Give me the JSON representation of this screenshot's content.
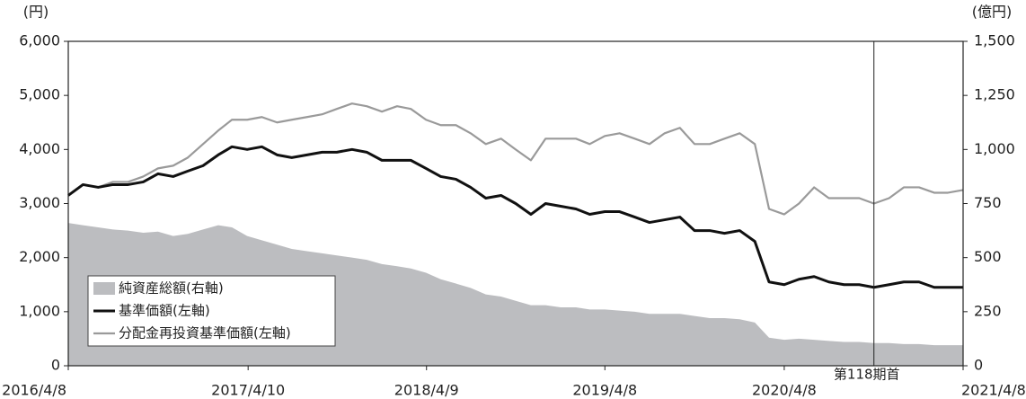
{
  "chart_data": {
    "type": "line",
    "y_label": "(円)",
    "y2_label": "(億円)",
    "x": [
      "2016/4/8",
      "2016/5/8",
      "2016/6/8",
      "2016/7/8",
      "2016/8/8",
      "2016/9/8",
      "2016/10/8",
      "2016/11/8",
      "2016/12/8",
      "2017/1/8",
      "2017/2/8",
      "2017/3/8",
      "2017/4/8",
      "2017/5/8",
      "2017/6/8",
      "2017/7/8",
      "2017/8/8",
      "2017/9/8",
      "2017/10/8",
      "2017/11/8",
      "2017/12/8",
      "2018/1/8",
      "2018/2/8",
      "2018/3/8",
      "2018/4/8",
      "2018/5/8",
      "2018/6/8",
      "2018/7/8",
      "2018/8/8",
      "2018/9/8",
      "2018/10/8",
      "2018/11/8",
      "2018/12/8",
      "2019/1/8",
      "2019/2/8",
      "2019/3/8",
      "2019/4/8",
      "2019/5/8",
      "2019/6/8",
      "2019/7/8",
      "2019/8/8",
      "2019/9/8",
      "2019/10/8",
      "2019/11/8",
      "2019/12/8",
      "2020/1/8",
      "2020/2/8",
      "2020/3/8",
      "2020/4/8",
      "2020/5/8",
      "2020/6/8",
      "2020/7/8",
      "2020/8/8",
      "2020/9/8",
      "2020/10/8",
      "2020/11/8",
      "2020/12/8",
      "2021/1/8",
      "2021/2/8",
      "2021/3/8",
      "2021/4/8"
    ],
    "series": [
      {
        "name": "純資産総額(右軸)",
        "type": "area",
        "axis": "y2",
        "color": "#bcbdc0",
        "values": [
          660,
          650,
          640,
          630,
          625,
          615,
          620,
          600,
          610,
          630,
          650,
          640,
          600,
          580,
          560,
          540,
          530,
          520,
          510,
          500,
          490,
          470,
          460,
          450,
          430,
          400,
          380,
          360,
          330,
          320,
          300,
          280,
          280,
          270,
          270,
          260,
          260,
          255,
          250,
          240,
          240,
          240,
          230,
          220,
          220,
          215,
          200,
          130,
          120,
          125,
          120,
          115,
          110,
          110,
          105,
          105,
          100,
          100,
          95,
          95,
          95
        ]
      },
      {
        "name": "基準価額(左軸)",
        "type": "line",
        "color": "#111111",
        "values": [
          3150,
          3350,
          3300,
          3350,
          3350,
          3400,
          3550,
          3500,
          3600,
          3700,
          3900,
          4050,
          4000,
          4050,
          3900,
          3850,
          3900,
          3950,
          3950,
          4000,
          3950,
          3800,
          3800,
          3800,
          3650,
          3500,
          3450,
          3300,
          3100,
          3150,
          3000,
          2800,
          3000,
          2950,
          2900,
          2800,
          2850,
          2850,
          2750,
          2650,
          2700,
          2750,
          2500,
          2500,
          2450,
          2500,
          2300,
          1550,
          1500,
          1600,
          1650,
          1550,
          1500,
          1500,
          1450,
          1500,
          1550,
          1550,
          1450,
          1450,
          1450
        ]
      },
      {
        "name": "分配金再投資基準価額(左軸)",
        "type": "line",
        "color": "#9a9a9a",
        "values": [
          3150,
          3350,
          3300,
          3400,
          3400,
          3500,
          3650,
          3700,
          3850,
          4100,
          4350,
          4550,
          4550,
          4600,
          4500,
          4550,
          4600,
          4650,
          4750,
          4850,
          4800,
          4700,
          4800,
          4750,
          4550,
          4450,
          4450,
          4300,
          4100,
          4200,
          4000,
          3800,
          4200,
          4200,
          4200,
          4100,
          4250,
          4300,
          4200,
          4100,
          4300,
          4400,
          4100,
          4100,
          4200,
          4300,
          4100,
          2900,
          2800,
          3000,
          3300,
          3100,
          3100,
          3100,
          3000,
          3100,
          3300,
          3300,
          3200,
          3200,
          3250
        ]
      }
    ],
    "xlim": [
      "2016/4/8",
      "2021/4/8"
    ],
    "xticks": [
      "2016/4/8",
      "2017/4/10",
      "2018/4/9",
      "2019/4/8",
      "2020/4/8",
      "2021/4/8"
    ],
    "ylim": [
      0,
      6000
    ],
    "yticks": [
      0,
      {
        "value": 1000,
        "label": "1,000"
      },
      {
        "value": 2000,
        "label": "2,000"
      },
      {
        "value": 3000,
        "label": "3,000"
      },
      {
        "value": 4000,
        "label": "4,000"
      },
      {
        "value": 5000,
        "label": "5,000"
      },
      {
        "value": 6000,
        "label": "6,000"
      }
    ],
    "y2lim": [
      0,
      1500
    ],
    "y2ticks": [
      0,
      250,
      500,
      750,
      {
        "value": 1000,
        "label": "1,000"
      },
      {
        "value": 1250,
        "label": "1,250"
      },
      {
        "value": 1500,
        "label": "1,500"
      }
    ],
    "marker": {
      "label": "第118期首",
      "x": "2020/10/8"
    },
    "legend": "lower left"
  }
}
